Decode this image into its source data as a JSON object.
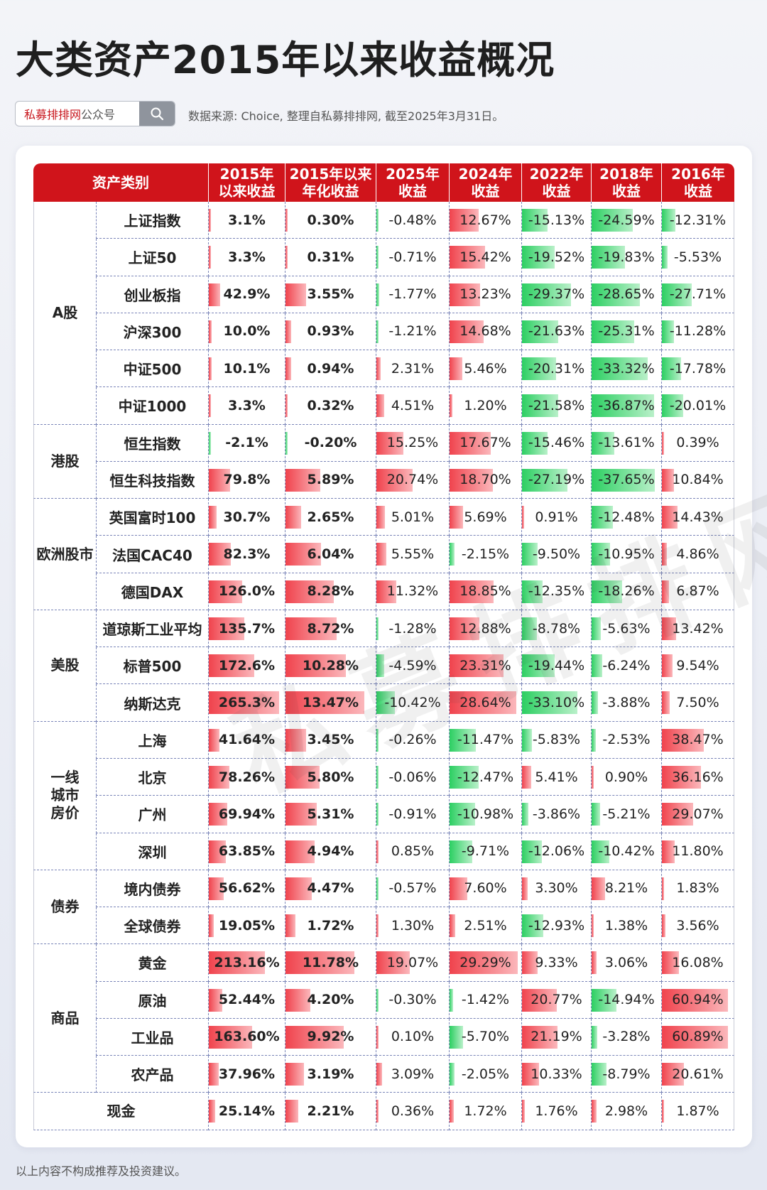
{
  "title": "大类资产2015年以来收益概况",
  "search": {
    "brand": "私募排排网",
    "suffix": "公众号"
  },
  "source": "数据来源: Choice, 整理自私募排排网, 截至2025年3月31日。",
  "watermark": "私募排排网",
  "footer": "以上内容不构成推荐及投资建议。",
  "colors": {
    "header": "#d0141b",
    "positive": "#f0434d",
    "negative": "#2ccf62"
  },
  "table": {
    "headers": [
      "资产类别",
      "2015年\n以来收益",
      "2015年以来\n年化收益",
      "2025年\n收益",
      "2024年\n收益",
      "2022年\n收益",
      "2018年\n收益",
      "2016年\n收益"
    ],
    "groups": [
      {
        "name": "A股",
        "rows": [
          {
            "name": "上证指数",
            "values": [
              "3.1%",
              "0.30%",
              "-0.48%",
              "12.67%",
              "-15.13%",
              "-24.59%",
              "-12.31%"
            ]
          },
          {
            "name": "上证50",
            "values": [
              "3.3%",
              "0.31%",
              "-0.71%",
              "15.42%",
              "-19.52%",
              "-19.83%",
              "-5.53%"
            ]
          },
          {
            "name": "创业板指",
            "values": [
              "42.9%",
              "3.55%",
              "-1.77%",
              "13.23%",
              "-29.37%",
              "-28.65%",
              "-27.71%"
            ]
          },
          {
            "name": "沪深300",
            "values": [
              "10.0%",
              "0.93%",
              "-1.21%",
              "14.68%",
              "-21.63%",
              "-25.31%",
              "-11.28%"
            ]
          },
          {
            "name": "中证500",
            "values": [
              "10.1%",
              "0.94%",
              "2.31%",
              "5.46%",
              "-20.31%",
              "-33.32%",
              "-17.78%"
            ]
          },
          {
            "name": "中证1000",
            "values": [
              "3.3%",
              "0.32%",
              "4.51%",
              "1.20%",
              "-21.58%",
              "-36.87%",
              "-20.01%"
            ]
          }
        ]
      },
      {
        "name": "港股",
        "rows": [
          {
            "name": "恒生指数",
            "values": [
              "-2.1%",
              "-0.20%",
              "15.25%",
              "17.67%",
              "-15.46%",
              "-13.61%",
              "0.39%"
            ]
          },
          {
            "name": "恒生科技指数",
            "values": [
              "79.8%",
              "5.89%",
              "20.74%",
              "18.70%",
              "-27.19%",
              "-37.65%",
              "10.84%"
            ]
          }
        ]
      },
      {
        "name": "欧洲股市",
        "rows": [
          {
            "name": "英国富时100",
            "values": [
              "30.7%",
              "2.65%",
              "5.01%",
              "5.69%",
              "0.91%",
              "-12.48%",
              "14.43%"
            ]
          },
          {
            "name": "法国CAC40",
            "values": [
              "82.3%",
              "6.04%",
              "5.55%",
              "-2.15%",
              "-9.50%",
              "-10.95%",
              "4.86%"
            ]
          },
          {
            "name": "德国DAX",
            "values": [
              "126.0%",
              "8.28%",
              "11.32%",
              "18.85%",
              "-12.35%",
              "-18.26%",
              "6.87%"
            ]
          }
        ]
      },
      {
        "name": "美股",
        "rows": [
          {
            "name": "道琼斯工业平均",
            "values": [
              "135.7%",
              "8.72%",
              "-1.28%",
              "12.88%",
              "-8.78%",
              "-5.63%",
              "13.42%"
            ]
          },
          {
            "name": "标普500",
            "values": [
              "172.6%",
              "10.28%",
              "-4.59%",
              "23.31%",
              "-19.44%",
              "-6.24%",
              "9.54%"
            ]
          },
          {
            "name": "纳斯达克",
            "values": [
              "265.3%",
              "13.47%",
              "-10.42%",
              "28.64%",
              "-33.10%",
              "-3.88%",
              "7.50%"
            ]
          }
        ]
      },
      {
        "name": "一线\n城市\n房价",
        "rows": [
          {
            "name": "上海",
            "values": [
              "41.64%",
              "3.45%",
              "-0.26%",
              "-11.47%",
              "-5.83%",
              "-2.53%",
              "38.47%"
            ]
          },
          {
            "name": "北京",
            "values": [
              "78.26%",
              "5.80%",
              "-0.06%",
              "-12.47%",
              "5.41%",
              "0.90%",
              "36.16%"
            ]
          },
          {
            "name": "广州",
            "values": [
              "69.94%",
              "5.31%",
              "-0.91%",
              "-10.98%",
              "-3.86%",
              "-5.21%",
              "29.07%"
            ]
          },
          {
            "name": "深圳",
            "values": [
              "63.85%",
              "4.94%",
              "0.85%",
              "-9.71%",
              "-12.06%",
              "-10.42%",
              "11.80%"
            ]
          }
        ]
      },
      {
        "name": "债券",
        "rows": [
          {
            "name": "境内债券",
            "values": [
              "56.62%",
              "4.47%",
              "-0.57%",
              "7.60%",
              "3.30%",
              "8.21%",
              "1.83%"
            ]
          },
          {
            "name": "全球债券",
            "values": [
              "19.05%",
              "1.72%",
              "1.30%",
              "2.51%",
              "-12.93%",
              "1.38%",
              "3.56%"
            ]
          }
        ]
      },
      {
        "name": "商品",
        "rows": [
          {
            "name": "黄金",
            "values": [
              "213.16%",
              "11.78%",
              "19.07%",
              "29.29%",
              "9.33%",
              "3.06%",
              "16.08%"
            ]
          },
          {
            "name": "原油",
            "values": [
              "52.44%",
              "4.20%",
              "-0.30%",
              "-1.42%",
              "20.77%",
              "-14.94%",
              "60.94%"
            ]
          },
          {
            "name": "工业品",
            "values": [
              "163.60%",
              "9.92%",
              "0.10%",
              "-5.70%",
              "21.19%",
              "-3.28%",
              "60.89%"
            ]
          },
          {
            "name": "农产品",
            "values": [
              "37.96%",
              "3.19%",
              "3.09%",
              "-2.05%",
              "10.33%",
              "-8.79%",
              "20.61%"
            ]
          }
        ]
      },
      {
        "name": "现金",
        "single": true,
        "rows": [
          {
            "name": "",
            "values": [
              "25.14%",
              "2.21%",
              "0.36%",
              "1.72%",
              "1.76%",
              "2.98%",
              "1.87%"
            ]
          }
        ]
      }
    ]
  }
}
